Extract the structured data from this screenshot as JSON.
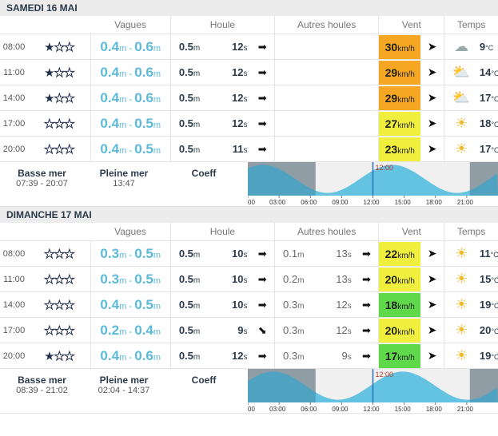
{
  "columns": {
    "vagues": "Vagues",
    "houle": "Houle",
    "autres": "Autres houles",
    "vent": "Vent",
    "temps": "Temps"
  },
  "days": [
    {
      "title": "SAMEDI 16 MAI",
      "rows": [
        {
          "time": "08:00",
          "stars": 1,
          "wmin": "0.4",
          "wmax": "0.6",
          "swell": "0.5",
          "period": "12",
          "dir": "➡",
          "other_h": "",
          "other_p": "",
          "other_dir": "",
          "wind": "30",
          "wind_color": "#f5a623",
          "wdir": "➤",
          "icon": "☁",
          "temp": "9"
        },
        {
          "time": "11:00",
          "stars": 1,
          "wmin": "0.4",
          "wmax": "0.6",
          "swell": "0.5",
          "period": "12",
          "dir": "➡",
          "other_h": "",
          "other_p": "",
          "other_dir": "",
          "wind": "29",
          "wind_color": "#f5a623",
          "wdir": "➤",
          "icon": "⛅",
          "temp": "14"
        },
        {
          "time": "14:00",
          "stars": 1,
          "wmin": "0.4",
          "wmax": "0.6",
          "swell": "0.5",
          "period": "12",
          "dir": "➡",
          "other_h": "",
          "other_p": "",
          "other_dir": "",
          "wind": "29",
          "wind_color": "#f5a623",
          "wdir": "➤",
          "icon": "⛅",
          "temp": "17"
        },
        {
          "time": "17:00",
          "stars": 0,
          "wmin": "0.4",
          "wmax": "0.5",
          "swell": "0.5",
          "period": "12",
          "dir": "➡",
          "other_h": "",
          "other_p": "",
          "other_dir": "",
          "wind": "27",
          "wind_color": "#f1ef3d",
          "wdir": "➤",
          "icon": "☀",
          "temp": "18"
        },
        {
          "time": "20:00",
          "stars": 0,
          "wmin": "0.4",
          "wmax": "0.5",
          "swell": "0.5",
          "period": "11",
          "dir": "➡",
          "other_h": "",
          "other_p": "",
          "other_dir": "",
          "wind": "23",
          "wind_color": "#f1ef3d",
          "wdir": "➤",
          "icon": "☀",
          "temp": "17"
        }
      ],
      "tide": {
        "basse_label": "Basse mer",
        "basse": "07:39 - 20:07",
        "pleine_label": "Pleine mer",
        "pleine": "13:47",
        "coeff_label": "Coeff",
        "coeff": "",
        "now": "12:00"
      }
    },
    {
      "title": "DIMANCHE 17 MAI",
      "rows": [
        {
          "time": "08:00",
          "stars": 0,
          "wmin": "0.3",
          "wmax": "0.5",
          "swell": "0.5",
          "period": "10",
          "dir": "➡",
          "other_h": "0.1",
          "other_p": "13",
          "other_dir": "➡",
          "wind": "22",
          "wind_color": "#f1ef3d",
          "wdir": "➤",
          "icon": "☀",
          "temp": "11"
        },
        {
          "time": "11:00",
          "stars": 0,
          "wmin": "0.3",
          "wmax": "0.5",
          "swell": "0.5",
          "period": "10",
          "dir": "➡",
          "other_h": "0.2",
          "other_p": "13",
          "other_dir": "➡",
          "wind": "20",
          "wind_color": "#f1ef3d",
          "wdir": "➤",
          "icon": "☀",
          "temp": "15"
        },
        {
          "time": "14:00",
          "stars": 0,
          "wmin": "0.4",
          "wmax": "0.5",
          "swell": "0.5",
          "period": "10",
          "dir": "➡",
          "other_h": "0.3",
          "other_p": "12",
          "other_dir": "➡",
          "wind": "18",
          "wind_color": "#5fd94a",
          "wdir": "➤",
          "icon": "☀",
          "temp": "19"
        },
        {
          "time": "17:00",
          "stars": 0,
          "wmin": "0.2",
          "wmax": "0.4",
          "swell": "0.5",
          "period": "9",
          "dir": "⬊",
          "other_h": "0.3",
          "other_p": "12",
          "other_dir": "➡",
          "wind": "20",
          "wind_color": "#f1ef3d",
          "wdir": "➤",
          "icon": "☀",
          "temp": "20"
        },
        {
          "time": "20:00",
          "stars": 1,
          "wmin": "0.4",
          "wmax": "0.6",
          "swell": "0.5",
          "period": "12",
          "dir": "➡",
          "other_h": "0.3",
          "other_p": "9",
          "other_dir": "➡",
          "wind": "17",
          "wind_color": "#5fd94a",
          "wdir": "➤",
          "icon": "☀",
          "temp": "19"
        }
      ],
      "tide": {
        "basse_label": "Basse mer",
        "basse": "08:39 - 21:02",
        "pleine_label": "Pleine mer",
        "pleine": "02:04 - 14:37",
        "coeff_label": "Coeff",
        "coeff": "",
        "now": "12:00"
      }
    }
  ],
  "units": {
    "m": "m",
    "s": "s",
    "kmh": "km/h",
    "deg": "°C"
  },
  "tide_axis": [
    "00",
    "03:00",
    "06:00",
    "09:00",
    "12:00",
    "15:00",
    "18:00",
    "21:00"
  ]
}
